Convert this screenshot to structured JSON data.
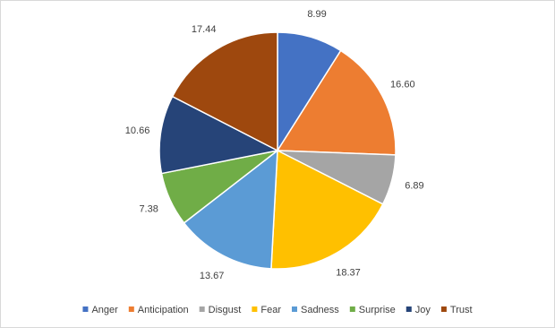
{
  "chart_data": {
    "type": "pie",
    "categories": [
      "Anger",
      "Anticipation",
      "Disgust",
      "Fear",
      "Sadness",
      "Surprise",
      "Joy",
      "Trust"
    ],
    "values": [
      8.99,
      16.6,
      6.89,
      18.37,
      13.67,
      7.38,
      10.66,
      17.44
    ],
    "value_labels": [
      "8.99",
      "16.60",
      "6.89",
      "18.37",
      "13.67",
      "7.38",
      "10.66",
      "17.44"
    ],
    "colors": [
      "#4472c4",
      "#ed7d31",
      "#a5a5a5",
      "#ffc000",
      "#5b9bd5",
      "#70ad47",
      "#264478",
      "#9e480e"
    ],
    "legend": "bottom"
  }
}
